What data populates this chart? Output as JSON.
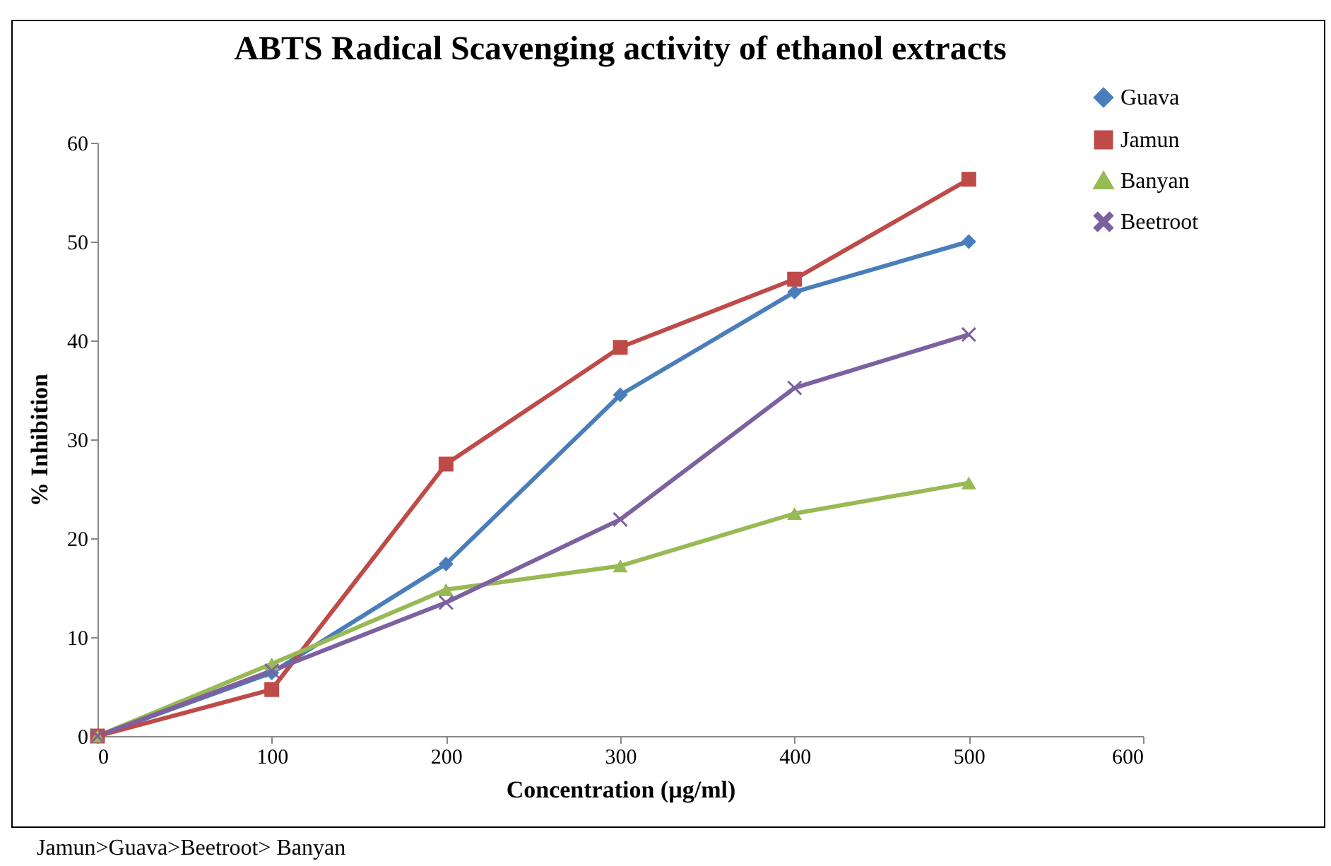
{
  "chart_data": {
    "type": "line",
    "title": "ABTS Radical Scavenging activity of ethanol extracts",
    "xlabel": "Concentration (µg/ml)",
    "ylabel": "% Inhibition",
    "x": [
      0,
      100,
      200,
      300,
      400,
      500
    ],
    "series": [
      {
        "name": "Guava",
        "color": "#4a7ebb",
        "marker": "diamond",
        "values": [
          0,
          6.4,
          17.4,
          34.5,
          44.9,
          50.0
        ]
      },
      {
        "name": "Jamun",
        "color": "#be4b48",
        "marker": "square",
        "values": [
          0,
          4.7,
          27.5,
          39.3,
          46.2,
          56.3
        ]
      },
      {
        "name": "Banyan",
        "color": "#98b954",
        "marker": "triangle",
        "values": [
          0,
          7.3,
          14.8,
          17.2,
          22.5,
          25.6
        ]
      },
      {
        "name": "Beetroot",
        "color": "#7d60a0",
        "marker": "cross",
        "values": [
          0,
          6.6,
          13.5,
          21.9,
          35.2,
          40.6
        ]
      }
    ],
    "xlim": [
      0,
      600
    ],
    "xticks": [
      0,
      100,
      200,
      300,
      400,
      500,
      600
    ],
    "ylim": [
      0,
      60
    ],
    "yticks": [
      0,
      10,
      20,
      30,
      40,
      50,
      60
    ],
    "grid": false,
    "legend": "top right",
    "line_style": "solid",
    "annotations": [
      "Jamun>Guava>Beetroot> Banyan"
    ]
  }
}
